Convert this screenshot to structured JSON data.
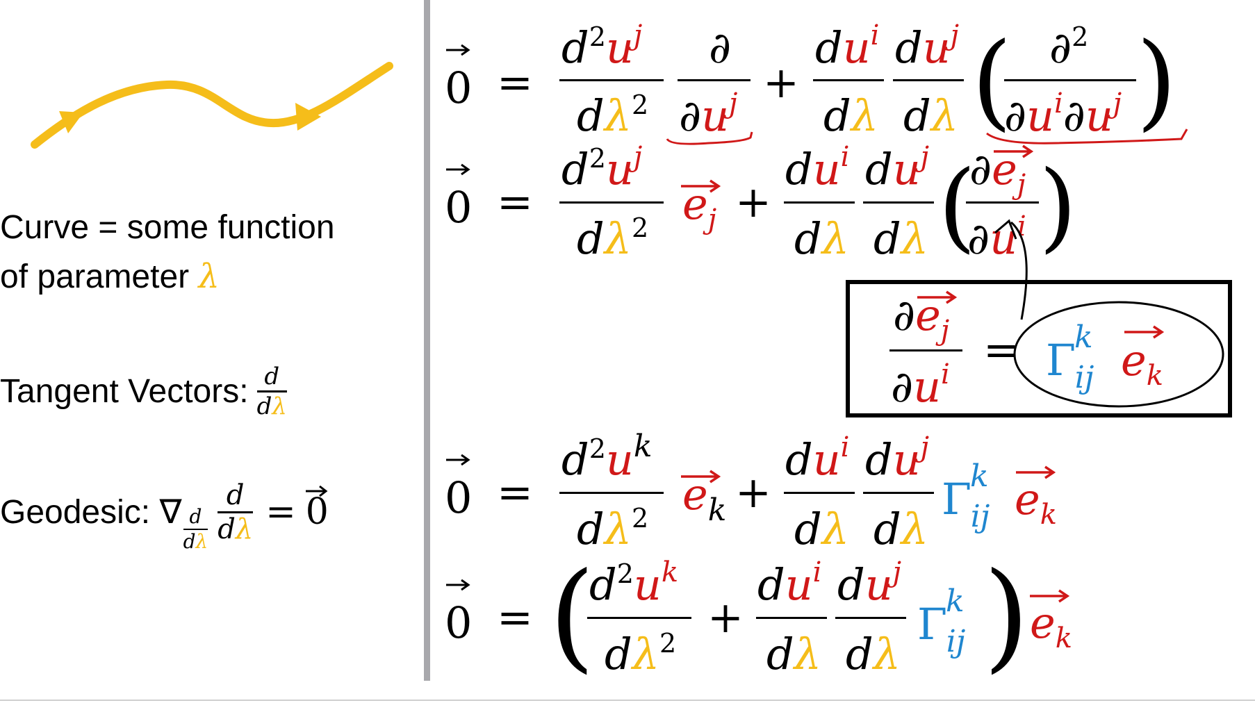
{
  "colors": {
    "accent_yellow": "#f5bd1a",
    "variable_red": "#d01818",
    "christoffel_blue": "#1f86cf",
    "divider_gray": "#a8a8ac"
  },
  "left_panel": {
    "curve_label_line1": "Curve = some function",
    "curve_label_line2": "of parameter",
    "parameter_symbol": "λ",
    "tangent_label": "Tangent Vectors:",
    "geodesic_label": "Geodesic: ∇",
    "d": "d",
    "d_lambda_d": "d",
    "zero_vec": "0"
  },
  "equations": {
    "zero": "0",
    "equals": "=",
    "plus": "+",
    "d": "d",
    "u": "u",
    "lambda": "λ",
    "partial": "∂",
    "sq": "2",
    "idx_i": "i",
    "idx_j": "j",
    "idx_k": "k",
    "e": "e",
    "gamma": "Γ",
    "ij": "ij",
    "lparen": "(",
    "rparen": ")"
  }
}
